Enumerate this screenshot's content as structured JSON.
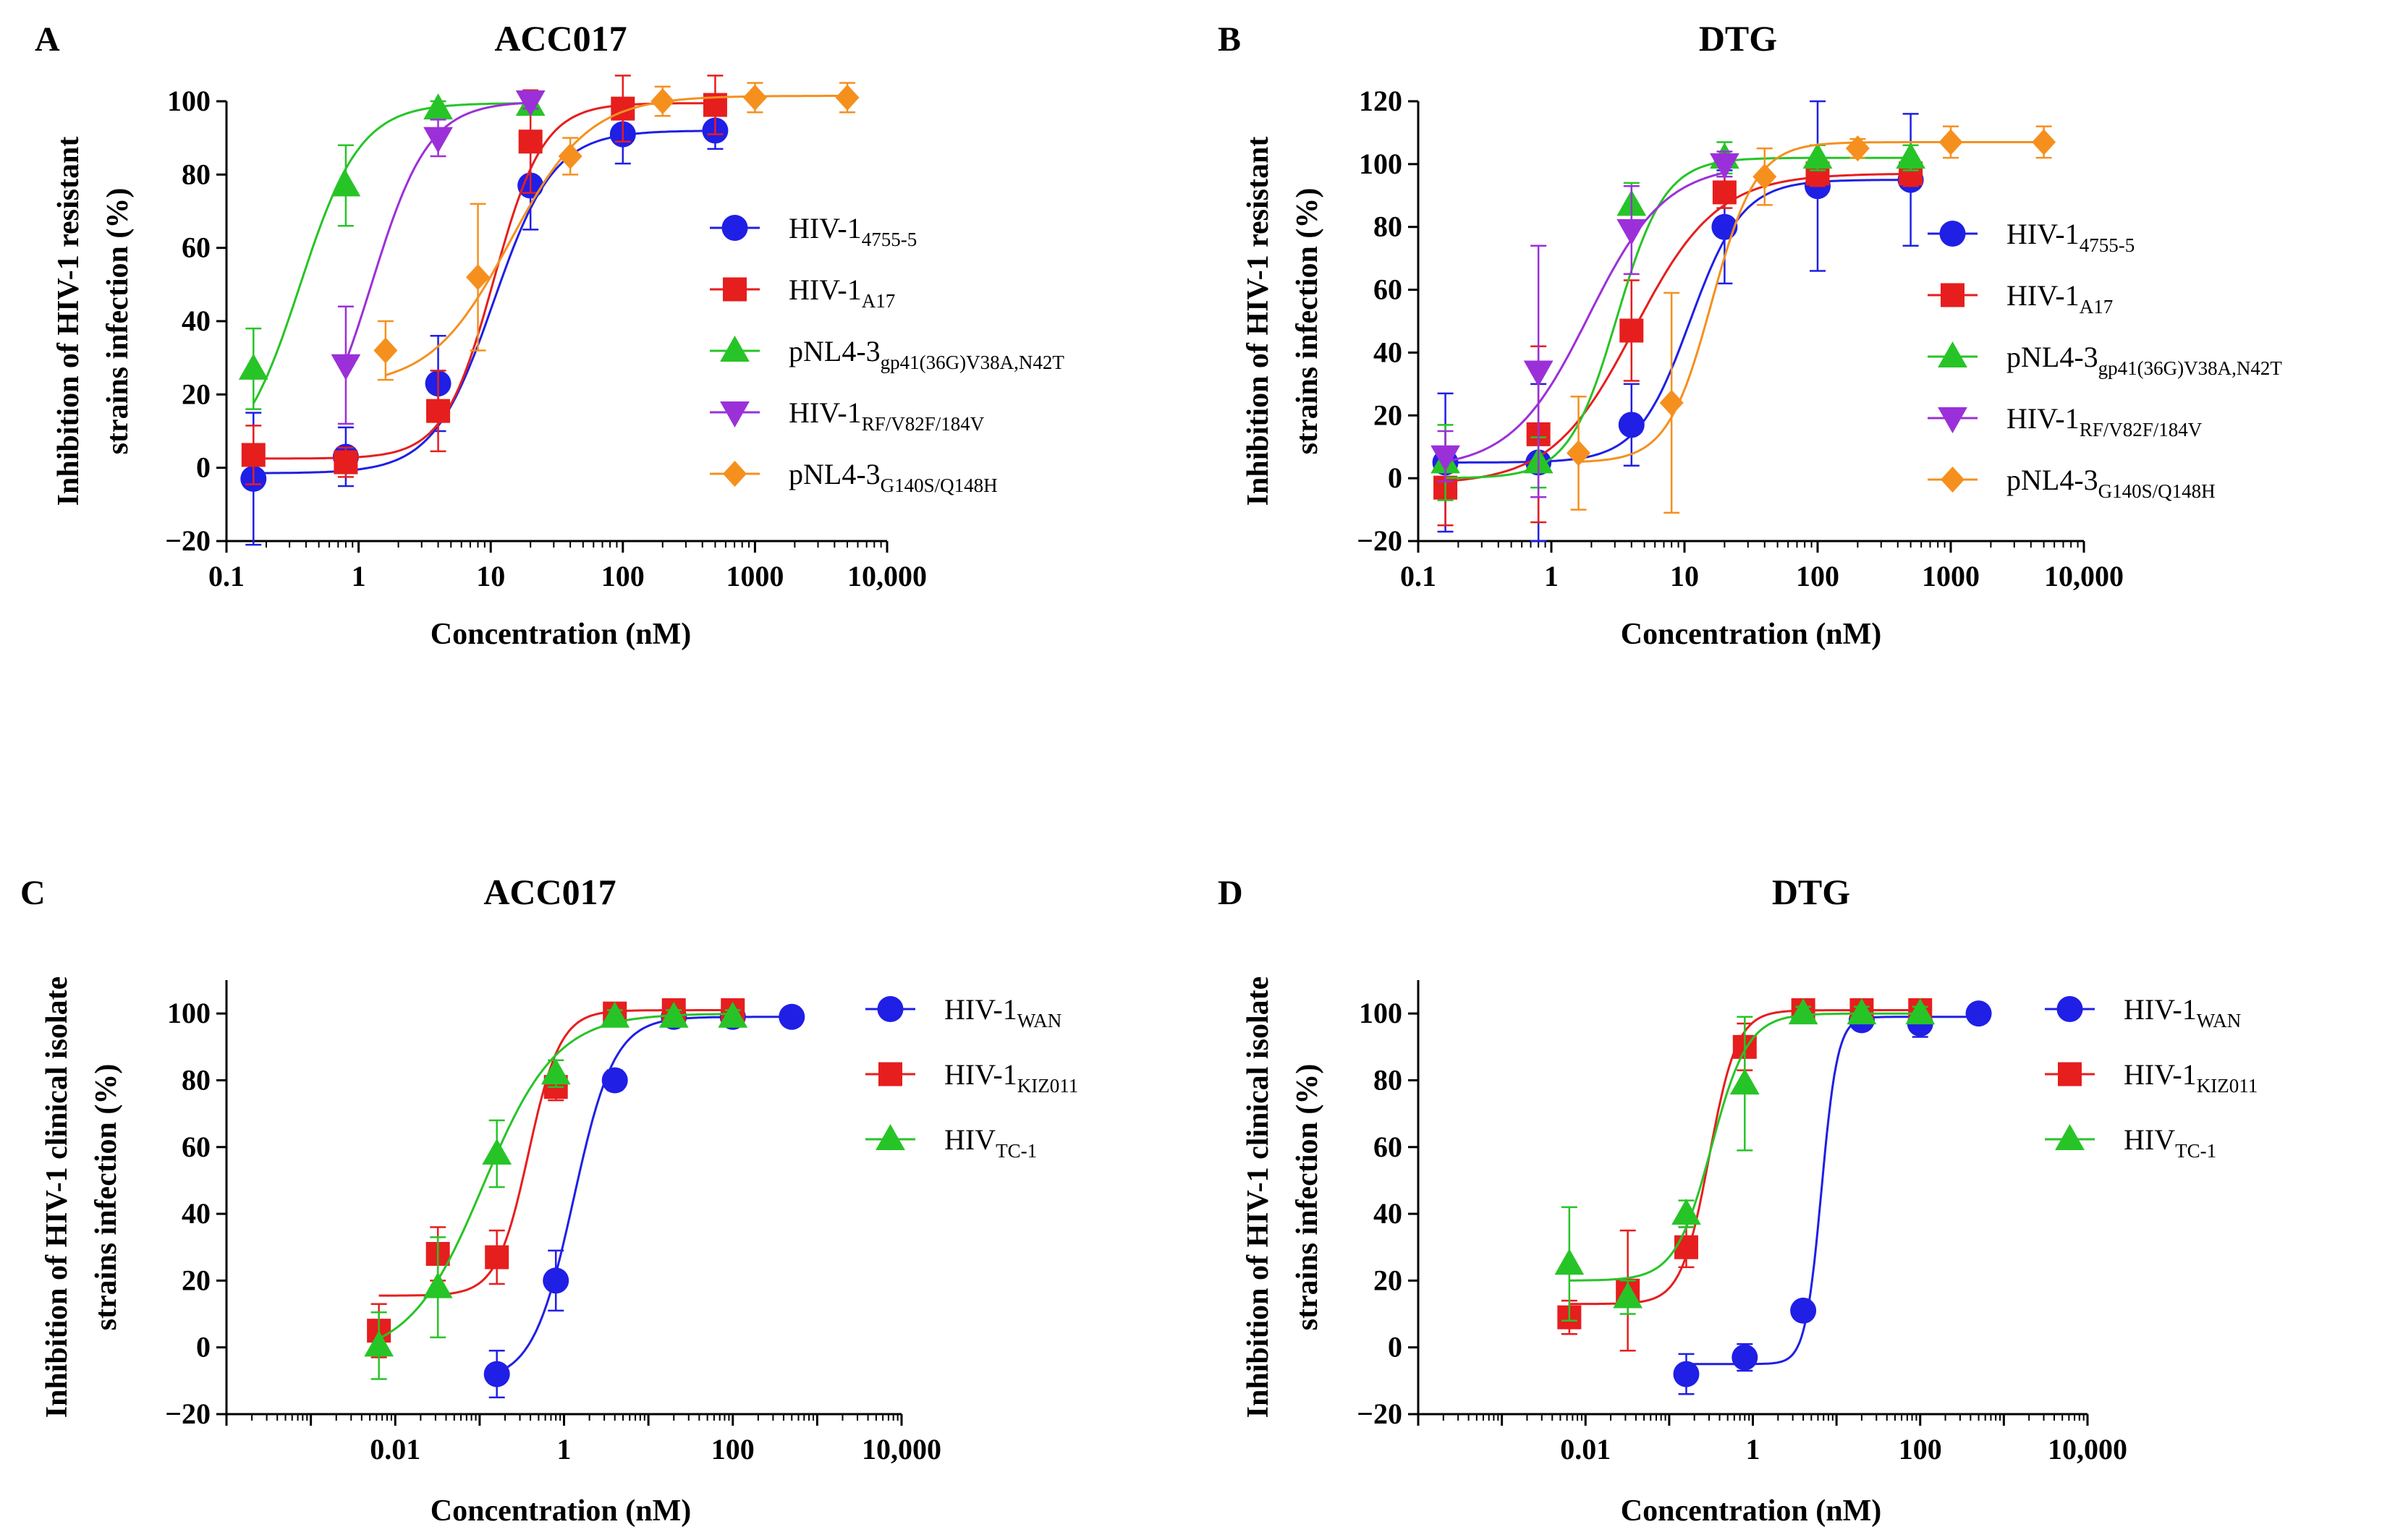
{
  "chart_data": [
    {
      "type": "line",
      "panel_label": "A",
      "title": "ACC017",
      "xlabel": "Concentration (nM)",
      "ylabel_lines": [
        "Inhibition of HIV-1 resistant",
        "strains infection (%)"
      ],
      "xscale": "log",
      "xlim": [
        0.1,
        10000
      ],
      "ylim": [
        -20,
        100
      ],
      "xticks": [
        0.1,
        1,
        10,
        100,
        1000,
        10000
      ],
      "xtick_labels": [
        "0.1",
        "1",
        "10",
        "100",
        "1000",
        "10,000"
      ],
      "yticks": [
        -20,
        0,
        20,
        40,
        60,
        80,
        100
      ],
      "ytick_labels": [
        "−20",
        "0",
        "20",
        "40",
        "60",
        "80",
        "100"
      ],
      "legend_position": "right",
      "series": [
        {
          "name": "HIV-1",
          "name_sub": "4755-5",
          "color": "#1f1fe6",
          "marker": "circle",
          "x": [
            0.16,
            0.8,
            4,
            20,
            100,
            500
          ],
          "y": [
            -3,
            3,
            23,
            77,
            91,
            92
          ],
          "err": [
            18,
            8,
            13,
            12,
            8,
            5
          ],
          "fit": {
            "bottom": -1.5,
            "top": 92,
            "ec50": 10.5,
            "hill": 1.9
          }
        },
        {
          "name": "HIV-1",
          "name_sub": "A17",
          "color": "#e61e1e",
          "marker": "square",
          "x": [
            0.16,
            0.8,
            4,
            20,
            100,
            500
          ],
          "y": [
            3.5,
            1.5,
            15.5,
            89,
            98,
            99
          ],
          "err": [
            8,
            4,
            11,
            14,
            9,
            8
          ],
          "fit": {
            "bottom": 2.5,
            "top": 99.5,
            "ec50": 10.5,
            "hill": 2.3
          }
        },
        {
          "name": "pNL4-3",
          "name_sub": "gp41(36G)V38A,N42T",
          "color": "#27c427",
          "marker": "triangle-up",
          "x": [
            0.16,
            0.8,
            4,
            20
          ],
          "y": [
            27,
            77,
            98,
            99
          ],
          "err": [
            11,
            11,
            2,
            2
          ],
          "fit": {
            "bottom": 0,
            "top": 99.5,
            "ec50": 0.36,
            "hill": 1.9
          }
        },
        {
          "name": "HIV-1",
          "name_sub": "RF/V82F/184V",
          "color": "#9b30d9",
          "marker": "triangle-down",
          "x": [
            0.8,
            4,
            20
          ],
          "y": [
            28,
            90,
            100
          ],
          "err": [
            16,
            5,
            2
          ],
          "fit": {
            "bottom": 0,
            "top": 100,
            "ec50": 1.25,
            "hill": 2.0
          }
        },
        {
          "name": "pNL4-3",
          "name_sub": "G140S/Q148H",
          "color": "#f5901f",
          "marker": "diamond",
          "x": [
            1.6,
            8,
            40,
            200,
            1000,
            5000
          ],
          "y": [
            32,
            52,
            85,
            100,
            101,
            101
          ],
          "err": [
            8,
            20,
            5,
            4,
            4,
            4
          ],
          "fit": {
            "bottom": 22,
            "top": 101.5,
            "ec50": 14,
            "hill": 1.45
          }
        }
      ]
    },
    {
      "type": "line",
      "panel_label": "B",
      "title": "DTG",
      "xlabel": "Concentration (nM)",
      "ylabel_lines": [
        "Inhibition of HIV-1 resistant",
        "strains infection (%)"
      ],
      "xscale": "log",
      "xlim": [
        0.1,
        10000
      ],
      "ylim": [
        -20,
        120
      ],
      "xticks": [
        0.1,
        1,
        10,
        100,
        1000,
        10000
      ],
      "xtick_labels": [
        "0.1",
        "1",
        "10",
        "100",
        "1000",
        "10,000"
      ],
      "yticks": [
        -20,
        0,
        20,
        40,
        60,
        80,
        100,
        120
      ],
      "ytick_labels": [
        "−20",
        "0",
        "20",
        "40",
        "60",
        "80",
        "100",
        "120"
      ],
      "legend_position": "right",
      "series": [
        {
          "name": "HIV-1",
          "name_sub": "4755-5",
          "color": "#1f1fe6",
          "marker": "circle",
          "x": [
            0.16,
            0.8,
            4,
            20,
            100,
            500
          ],
          "y": [
            5,
            5,
            17,
            80,
            93,
            95
          ],
          "err": [
            22,
            25,
            13,
            18,
            27,
            21
          ],
          "fit": {
            "bottom": 5,
            "top": 95,
            "ec50": 11,
            "hill": 2.2
          }
        },
        {
          "name": "HIV-1",
          "name_sub": "A17",
          "color": "#e61e1e",
          "marker": "square",
          "x": [
            0.16,
            0.8,
            4,
            20,
            100,
            500
          ],
          "y": [
            -3,
            14,
            47,
            91,
            97,
            97
          ],
          "err": [
            12,
            28,
            16,
            5,
            4,
            4
          ],
          "fit": {
            "bottom": -2,
            "top": 97,
            "ec50": 4.2,
            "hill": 1.4
          }
        },
        {
          "name": "pNL4-3",
          "name_sub": "gp41(36G)V38A,N42T",
          "color": "#27c427",
          "marker": "triangle-up",
          "x": [
            0.16,
            0.8,
            4,
            20,
            100,
            500
          ],
          "y": [
            5,
            5,
            87,
            102,
            102,
            102
          ],
          "err": [
            12,
            8,
            7,
            5,
            4,
            4
          ],
          "fit": {
            "bottom": 0,
            "top": 102,
            "ec50": 3.1,
            "hill": 2.4
          }
        },
        {
          "name": "HIV-1",
          "name_sub": "RF/V82F/184V",
          "color": "#9b30d9",
          "marker": "triangle-down",
          "x": [
            0.16,
            0.8,
            4,
            20
          ],
          "y": [
            7,
            34,
            79,
            100
          ],
          "err": [
            8,
            40,
            14,
            4
          ],
          "fit": {
            "bottom": 3,
            "top": 100,
            "ec50": 1.9,
            "hill": 1.5
          }
        },
        {
          "name": "pNL4-3",
          "name_sub": "G140S/Q148H",
          "color": "#f5901f",
          "marker": "diamond",
          "x": [
            1.6,
            8,
            40,
            200,
            1000,
            5000
          ],
          "y": [
            8,
            24,
            96,
            105,
            107,
            107
          ],
          "err": [
            18,
            35,
            9,
            3,
            5,
            5
          ],
          "fit": {
            "bottom": 5,
            "top": 107,
            "ec50": 16,
            "hill": 2.6
          }
        }
      ]
    },
    {
      "type": "line",
      "panel_label": "C",
      "title": "ACC017",
      "xlabel": "Concentration (nM)",
      "ylabel_lines": [
        "Inhibition of HIV-1 clinical isolate",
        "strains infection (%)"
      ],
      "xscale": "log",
      "xlim": [
        0.0001,
        10000
      ],
      "ylim": [
        -20,
        110
      ],
      "xticks": [
        0.01,
        1,
        100,
        10000
      ],
      "xtick_labels": [
        "0.01",
        "1",
        "100",
        "10,000"
      ],
      "yticks": [
        -20,
        0,
        20,
        40,
        60,
        80,
        100
      ],
      "ytick_labels": [
        "−20",
        "0",
        "20",
        "40",
        "60",
        "80",
        "100"
      ],
      "legend_position": "right",
      "series": [
        {
          "name": "HIV-1",
          "name_sub": "WAN",
          "color": "#1f1fe6",
          "marker": "circle",
          "x": [
            0.16,
            0.8,
            4,
            20,
            100,
            500
          ],
          "y": [
            -8,
            20,
            80,
            99,
            99,
            99
          ],
          "err": [
            7,
            9,
            3,
            2,
            2,
            2
          ],
          "fit": {
            "bottom": -10,
            "top": 99,
            "ec50": 1.3,
            "hill": 1.8
          }
        },
        {
          "name": "HIV-1",
          "name_sub": "KIZ011",
          "color": "#e61e1e",
          "marker": "square",
          "x": [
            0.0064,
            0.032,
            0.16,
            0.8,
            4,
            20,
            100
          ],
          "y": [
            5,
            28,
            27,
            78,
            100,
            101,
            101
          ],
          "err": [
            8,
            8,
            8,
            4,
            2,
            2,
            2
          ],
          "fit": {
            "bottom": 15.5,
            "top": 101,
            "ec50": 0.38,
            "hill": 2.3
          }
        },
        {
          "name": "HIV",
          "name_sub": "TC-1",
          "color": "#27c427",
          "marker": "triangle-up",
          "x": [
            0.0064,
            0.032,
            0.16,
            0.8,
            4,
            20,
            100
          ],
          "y": [
            0.5,
            18,
            58,
            82,
            99,
            99,
            99
          ],
          "err": [
            10,
            15,
            10,
            4,
            2,
            2,
            2
          ],
          "fit": {
            "bottom": -3,
            "top": 100,
            "ec50": 0.11,
            "hill": 1.0
          }
        }
      ]
    },
    {
      "type": "line",
      "panel_label": "D",
      "title": "DTG",
      "xlabel": "Concentration (nM)",
      "ylabel_lines": [
        "Inhibition of HIV-1 clinical isolate",
        "strains infection (%)"
      ],
      "xscale": "log",
      "xlim": [
        0.0001,
        10000
      ],
      "ylim": [
        -20,
        110
      ],
      "xticks": [
        0.01,
        1,
        100,
        10000
      ],
      "xtick_labels": [
        "0.01",
        "1",
        "100",
        "10,000"
      ],
      "yticks": [
        -20,
        0,
        20,
        40,
        60,
        80,
        100
      ],
      "ytick_labels": [
        "−20",
        "0",
        "20",
        "40",
        "60",
        "80",
        "100"
      ],
      "legend_position": "right",
      "series": [
        {
          "name": "HIV-1",
          "name_sub": "WAN",
          "color": "#1f1fe6",
          "marker": "circle",
          "x": [
            0.16,
            0.8,
            4,
            20,
            100,
            500
          ],
          "y": [
            -8,
            -3,
            11,
            98,
            97,
            100
          ],
          "err": [
            6,
            4,
            2,
            2,
            4,
            2
          ],
          "fit": {
            "bottom": -5,
            "top": 99,
            "ec50": 6.6,
            "hill": 4.5
          }
        },
        {
          "name": "HIV-1",
          "name_sub": "KIZ011",
          "color": "#e61e1e",
          "marker": "square",
          "x": [
            0.0064,
            0.032,
            0.16,
            0.8,
            4,
            20,
            100
          ],
          "y": [
            9,
            17,
            30,
            90,
            101,
            101,
            101
          ],
          "err": [
            5,
            18,
            6,
            7,
            2,
            2,
            2
          ],
          "fit": {
            "bottom": 13,
            "top": 101,
            "ec50": 0.3,
            "hill": 2.6
          }
        },
        {
          "name": "HIV",
          "name_sub": "TC-1",
          "color": "#27c427",
          "marker": "triangle-up",
          "x": [
            0.0064,
            0.032,
            0.16,
            0.8,
            4,
            20,
            100
          ],
          "y": [
            25,
            15,
            40,
            79,
            100,
            100,
            100
          ],
          "err": [
            17,
            5,
            4,
            20,
            2,
            2,
            2
          ],
          "fit": {
            "bottom": 20,
            "top": 100,
            "ec50": 0.32,
            "hill": 2.0
          }
        }
      ]
    }
  ]
}
